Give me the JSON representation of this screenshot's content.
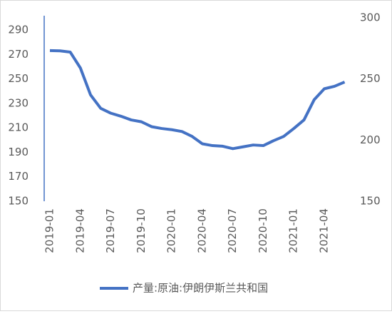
{
  "chart_data": {
    "type": "line",
    "categories": [
      "2019-01",
      null,
      null,
      "2019-04",
      null,
      null,
      "2019-07",
      null,
      null,
      "2019-10",
      null,
      null,
      "2020-01",
      null,
      null,
      "2020-04",
      null,
      null,
      "2020-07",
      null,
      null,
      "2020-10",
      null,
      null,
      "2021-01",
      null,
      null,
      "2021-04",
      null,
      null
    ],
    "series": [
      {
        "name": "产量:原油:伊朗伊斯兰共和国",
        "color": "#4472c4",
        "values": [
          273.2,
          273,
          272,
          259,
          237,
          226,
          222,
          219.5,
          216.5,
          215,
          211,
          209.5,
          208.5,
          207,
          203,
          197,
          195.5,
          195,
          193,
          194.5,
          196,
          195.5,
          199.5,
          203,
          209.5,
          216.5,
          233,
          242,
          244,
          247.5
        ]
      }
    ],
    "ylim": [
      150,
      300
    ],
    "yticks": [
      150,
      170,
      190,
      210,
      230,
      250,
      270,
      290
    ],
    "y2lim": [
      150,
      300
    ],
    "y2ticks": [
      150,
      200,
      250,
      300
    ],
    "grid": false,
    "legend": "bottom"
  }
}
